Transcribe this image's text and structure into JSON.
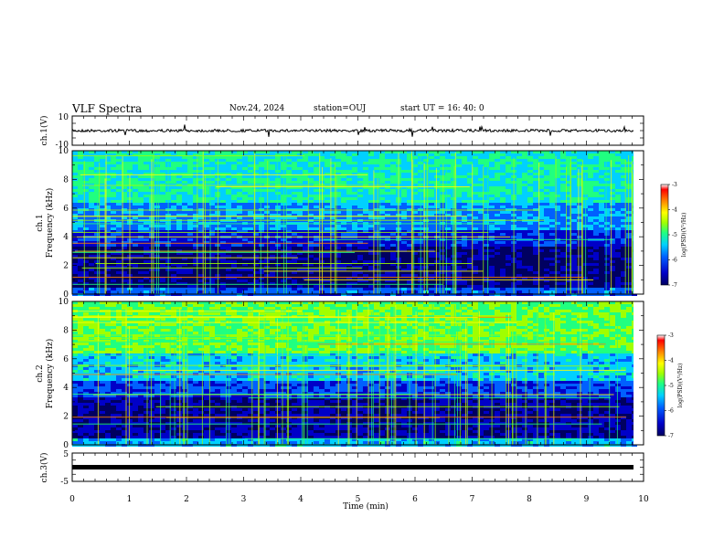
{
  "header": {
    "title": "VLF Spectra",
    "date": "Nov.24, 2024",
    "station": "station=OUJ",
    "start": "start  UT =   16: 40: 0"
  },
  "colors": {
    "colormap": [
      "#000060",
      "#0000c8",
      "#0060ff",
      "#00d0ff",
      "#20ff80",
      "#a0ff00",
      "#ffff00",
      "#ff8000",
      "#ff0000",
      "#ffffff"
    ],
    "trace": "#000000"
  },
  "chart_data": [
    {
      "type": "line",
      "ylabel": "ch.1(V)",
      "ylim": [
        -10,
        10
      ],
      "yticks": [
        "10",
        "-10"
      ],
      "xlim": [
        0,
        10
      ],
      "description_level": 0
    },
    {
      "type": "heatmap",
      "ylabel": [
        "ch.1",
        "Frequency  (kHz)"
      ],
      "ylim": [
        0,
        10
      ],
      "yticks": [
        "0",
        "2",
        "4",
        "6",
        "8",
        "10"
      ],
      "xlim": [
        0,
        10
      ],
      "colorbar": {
        "label": "log(PSD)(V²/Hz)",
        "ticks": [
          "-3",
          "-4",
          "-5",
          "-6",
          "-7"
        ],
        "range": [
          -7,
          -3
        ]
      }
    },
    {
      "type": "heatmap",
      "ylabel": [
        "ch.2",
        "Frequency  (kHz)"
      ],
      "ylim": [
        0,
        10
      ],
      "yticks": [
        "0",
        "2",
        "4",
        "6",
        "8",
        "10"
      ],
      "xlim": [
        0,
        10
      ],
      "colorbar": {
        "label": "log(PSD)(V²/Hz)",
        "ticks": [
          "-3",
          "-4",
          "-5",
          "-6",
          "-7"
        ],
        "range": [
          -7,
          -3
        ]
      }
    },
    {
      "type": "line",
      "ylabel": "ch.3(V)",
      "ylim": [
        -5,
        5
      ],
      "yticks": [
        "5",
        "-5"
      ],
      "xlim": [
        0,
        10
      ],
      "xlabel": "Time  (min)",
      "xticks": [
        "0",
        "1",
        "2",
        "3",
        "4",
        "5",
        "6",
        "7",
        "8",
        "9",
        "10"
      ]
    }
  ]
}
